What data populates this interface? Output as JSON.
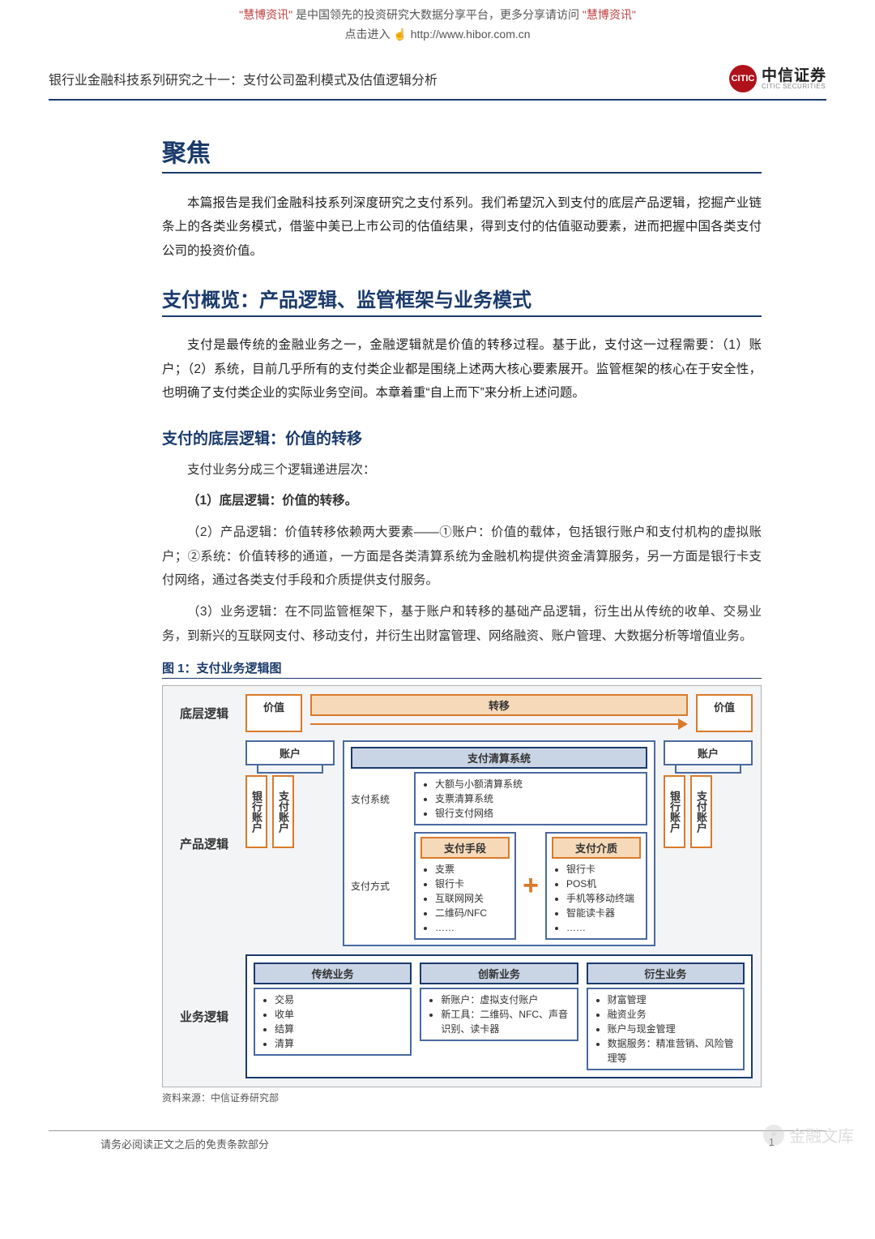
{
  "banner": {
    "pre_quote": "\"",
    "brand": "慧博资讯",
    "post_quote": "\"",
    "line1_mid": "是中国领先的投资研究大数据分享平台，更多分享请访问",
    "click_label": "点击进入",
    "url": "http://www.hibor.com.cn"
  },
  "header": {
    "doc_title": "银行业金融科技系列研究之十一：支付公司盈利模式及估值逻辑分析",
    "brand_cn": "中信证券",
    "brand_en": "CITIC SECURITIES",
    "logo_text": "CITIC"
  },
  "sections": {
    "h1": "聚焦",
    "intro": "本篇报告是我们金融科技系列深度研究之支付系列。我们希望沉入到支付的底层产品逻辑，挖掘产业链条上的各类业务模式，借鉴中美已上市公司的估值结果，得到支付的估值驱动要素，进而把握中国各类支付公司的投资价值。",
    "h2": "支付概览：产品逻辑、监管框架与业务模式",
    "p2": "支付是最传统的金融业务之一，金融逻辑就是价值的转移过程。基于此，支付这一过程需要：（1）账户；（2）系统，目前几乎所有的支付类企业都是围绕上述两大核心要素展开。监管框架的核心在于安全性，也明确了支付类企业的实际业务空间。本章着重“自上而下”来分析上述问题。",
    "h3": "支付的底层逻辑：价值的转移",
    "lead": "支付业务分成三个逻辑递进层次：",
    "item1": "（1）底层逻辑：价值的转移。",
    "item2": "（2）产品逻辑：价值转移依赖两大要素——①账户：价值的载体，包括银行账户和支付机构的虚拟账户；②系统：价值转移的通道，一方面是各类清算系统为金融机构提供资金清算服务，另一方面是银行卡支付网络，通过各类支付手段和介质提供支付服务。",
    "item3": "（3）业务逻辑：在不同监管框架下，基于账户和转移的基础产品逻辑，衍生出从传统的收单、交易业务，到新兴的互联网支付、移动支付，并衍生出财富管理、网络融资、账户管理、大数据分析等增值业务。",
    "fig_title": "图 1：支付业务逻辑图",
    "src": "资料来源：中信证券研究部"
  },
  "diagram": {
    "row1_label": "底层逻辑",
    "row2_label": "产品逻辑",
    "row3_label": "业务逻辑",
    "value": "价值",
    "transfer": "转移",
    "account": "账户",
    "bank_acct": "银行账户",
    "pay_acct": "支付账户",
    "clearing_title": "支付清算系统",
    "pay_system_label": "支付系统",
    "pay_method_label": "支付方式",
    "sys_items": [
      "大额与小额清算系统",
      "支票清算系统",
      "银行支付网络"
    ],
    "means_title": "支付手段",
    "means_items": [
      "支票",
      "银行卡",
      "互联网网关",
      "二维码/NFC",
      "……"
    ],
    "medium_title": "支付介质",
    "medium_items": [
      "银行卡",
      "POS机",
      "手机等移动终端",
      "智能读卡器",
      "……"
    ],
    "biz_trad": "传统业务",
    "biz_trad_items": [
      "交易",
      "收单",
      "结算",
      "清算"
    ],
    "biz_new": "创新业务",
    "biz_new_items": [
      "新账户：虚拟支付账户",
      "新工具：二维码、NFC、声音识别、读卡器"
    ],
    "biz_der": "衍生业务",
    "biz_der_items": [
      "财富管理",
      "融资业务",
      "账户与现金管理",
      "数据服务：精准营销、风险管理等"
    ]
  },
  "footer": {
    "disclaimer": "请务必阅读正文之后的免责条款部分",
    "page": "1"
  },
  "watermark": "金融文库",
  "colors": {
    "navy": "#1a3a6b",
    "orange": "#d97a2b",
    "orange_fill": "#f6d9b8",
    "grey_bg": "#f3f4f6",
    "brand_red": "#b0121b"
  }
}
